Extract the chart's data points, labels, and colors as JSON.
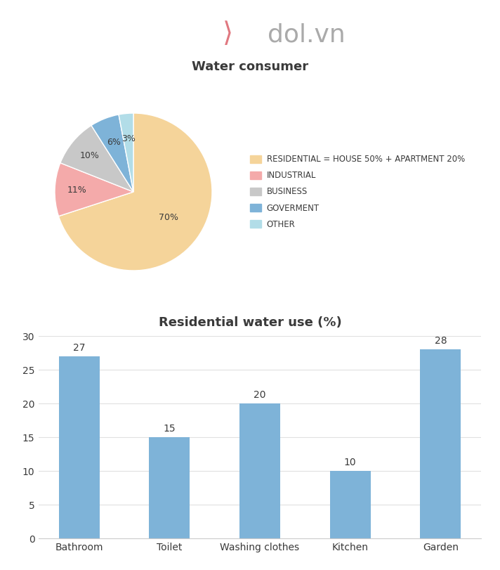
{
  "title_pie": "Water consumer",
  "title_bar": "Residential water use (%)",
  "pie_labels": [
    "RESIDENTIAL = HOUSE 50% + APARTMENT 20%",
    "INDUSTRIAL",
    "BUSINESS",
    "GOVERMENT",
    "OTHER"
  ],
  "pie_values": [
    70,
    11,
    10,
    6,
    3
  ],
  "pie_colors": [
    "#F5D49A",
    "#F4AAAA",
    "#C8C8C8",
    "#7EB3D8",
    "#B2DDE8"
  ],
  "pie_pct_labels": [
    "70%",
    "11%",
    "10%",
    "6%",
    "3%"
  ],
  "bar_categories": [
    "Bathroom",
    "Toilet",
    "Washing clothes",
    "Kitchen",
    "Garden"
  ],
  "bar_values": [
    27,
    15,
    20,
    10,
    28
  ],
  "bar_color": "#7EB3D8",
  "bar_ylim": [
    0,
    30
  ],
  "bar_yticks": [
    0,
    5,
    10,
    15,
    20,
    25,
    30
  ],
  "bg_color": "#FFFFFF",
  "pie_bg_color": "#EEF0F4",
  "bar_bg_color": "#FFFFFF",
  "text_color": "#3A3A3A",
  "title_fontsize": 13,
  "bar_label_fontsize": 10,
  "legend_fontsize": 8.5,
  "tick_fontsize": 10
}
